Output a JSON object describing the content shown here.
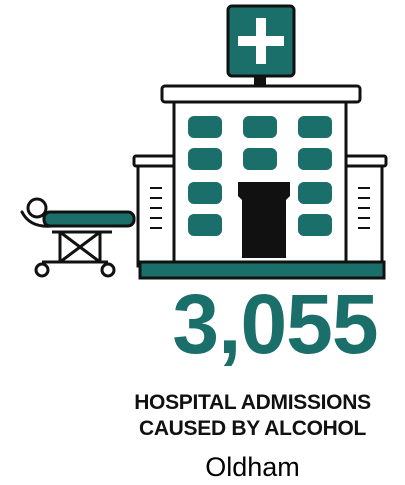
{
  "infographic": {
    "value": "3,055",
    "caption_line1": "HOSPITAL ADMISSIONS",
    "caption_line2": "CAUSED BY ALCOHOL",
    "area": "Oldham"
  },
  "colors": {
    "accent": "#1b6f6a",
    "text": "#111111"
  },
  "icons": [
    "hospital-icon",
    "medical-cross-icon",
    "stretcher-icon"
  ]
}
